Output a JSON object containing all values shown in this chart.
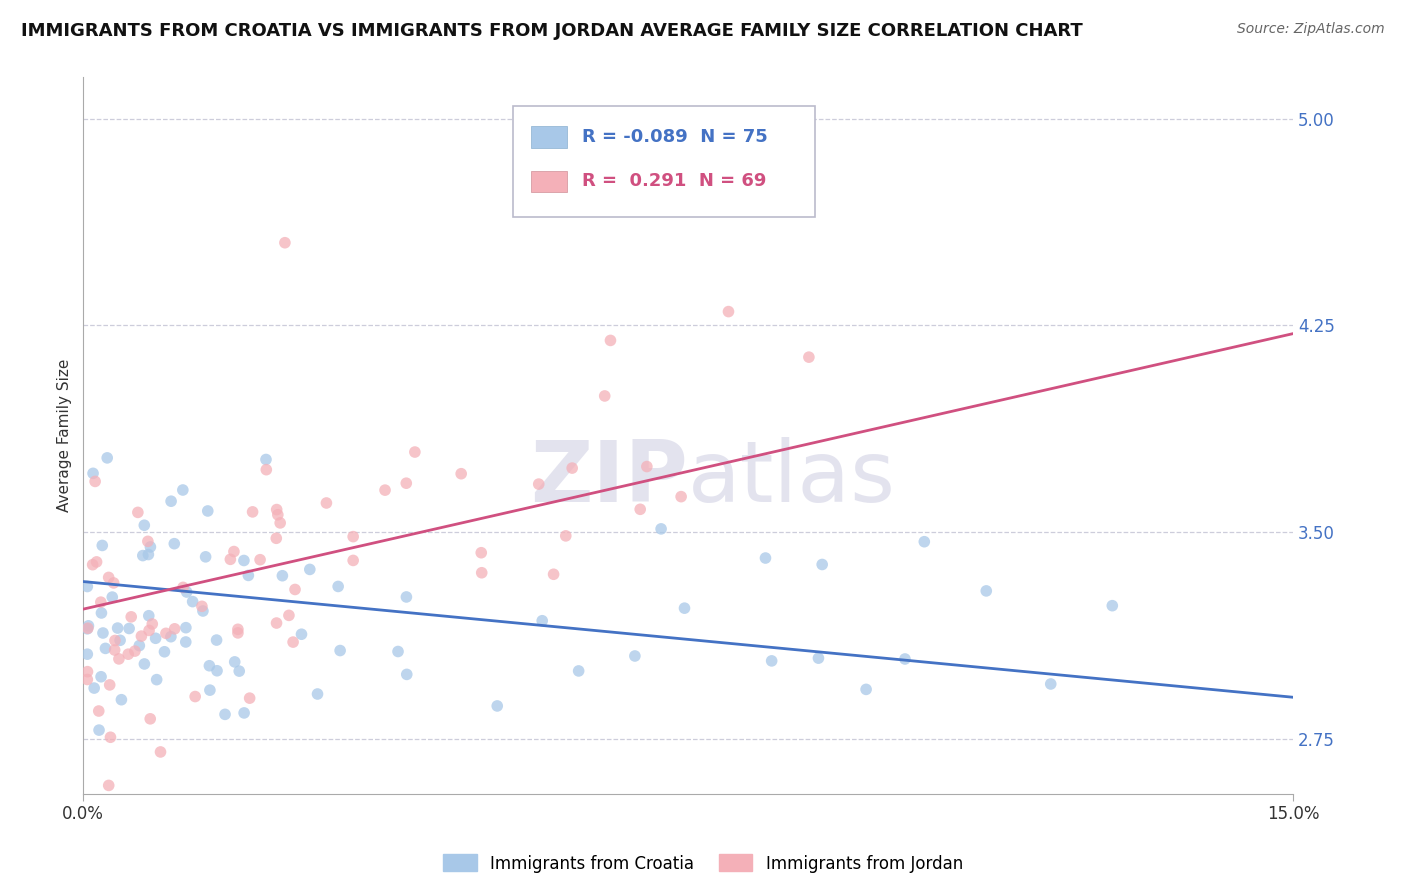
{
  "title": "IMMIGRANTS FROM CROATIA VS IMMIGRANTS FROM JORDAN AVERAGE FAMILY SIZE CORRELATION CHART",
  "source": "Source: ZipAtlas.com",
  "ylabel": "Average Family Size",
  "right_yticks": [
    2.75,
    3.5,
    4.25,
    5.0
  ],
  "xlim": [
    0.0,
    15.0
  ],
  "ylim": [
    2.55,
    5.15
  ],
  "croatia_R": -0.089,
  "croatia_N": 75,
  "jordan_R": 0.291,
  "jordan_N": 69,
  "croatia_color": "#a8c8e8",
  "jordan_color": "#f4b0b8",
  "croatia_line_color": "#4472c4",
  "jordan_line_color": "#d05080",
  "watermark_zip": "ZIP",
  "watermark_atlas": "atlas",
  "title_fontsize": 13,
  "axis_label_fontsize": 11,
  "tick_fontsize": 12,
  "legend_fontsize": 13,
  "grid_color": "#c8c8d8",
  "background_color": "#ffffff",
  "croatia_line_start_y": 3.32,
  "croatia_line_end_y": 2.9,
  "jordan_line_start_y": 3.22,
  "jordan_line_end_y": 4.22
}
